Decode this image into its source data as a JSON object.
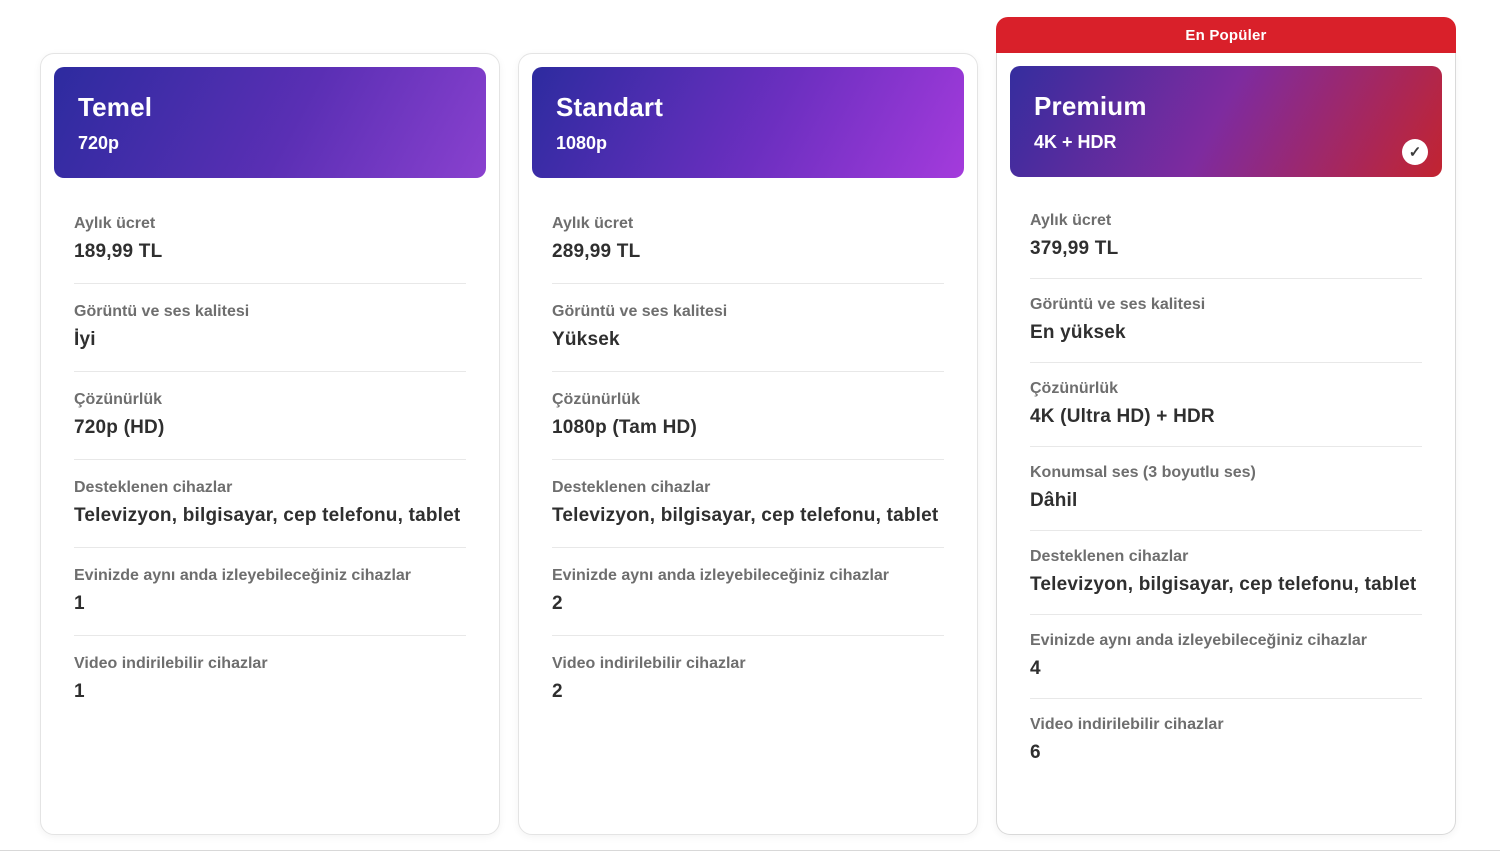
{
  "theme": {
    "badge_color": "#d9202a",
    "check_glyph": "✓",
    "gradients": {
      "temel": "linear-gradient(118deg, #2d2b9f 0%, #5a2fb4 55%, #8a41cf 100%)",
      "standart": "linear-gradient(118deg, #2d2b9f 0%, #6c2fc0 55%, #a43bdc 100%)",
      "premium": "linear-gradient(118deg, #352d9e 0%, #7e2b9f 48%, #c22430 100%)"
    }
  },
  "plans": [
    {
      "id": "temel",
      "title": "Temel",
      "subtitle": "720p",
      "selected": false,
      "features": [
        {
          "label": "Aylık ücret",
          "value": "189,99 TL"
        },
        {
          "label": "Görüntü ve ses kalitesi",
          "value": "İyi"
        },
        {
          "label": "Çözünürlük",
          "value": "720p (HD)"
        },
        {
          "label": "Desteklenen cihazlar",
          "value": "Televizyon, bilgisayar, cep telefonu, tablet"
        },
        {
          "label": "Evinizde aynı anda izleyebileceğiniz cihazlar",
          "value": "1"
        },
        {
          "label": "Video indirilebilir cihazlar",
          "value": "1"
        }
      ]
    },
    {
      "id": "standart",
      "title": "Standart",
      "subtitle": "1080p",
      "selected": false,
      "features": [
        {
          "label": "Aylık ücret",
          "value": "289,99 TL"
        },
        {
          "label": "Görüntü ve ses kalitesi",
          "value": "Yüksek"
        },
        {
          "label": "Çözünürlük",
          "value": "1080p (Tam HD)"
        },
        {
          "label": "Desteklenen cihazlar",
          "value": "Televizyon, bilgisayar, cep telefonu, tablet"
        },
        {
          "label": "Evinizde aynı anda izleyebileceğiniz cihazlar",
          "value": "2"
        },
        {
          "label": "Video indirilebilir cihazlar",
          "value": "2"
        }
      ]
    },
    {
      "id": "premium",
      "title": "Premium",
      "subtitle": "4K + HDR",
      "selected": true,
      "badge": "En Popüler",
      "features": [
        {
          "label": "Aylık ücret",
          "value": "379,99 TL"
        },
        {
          "label": "Görüntü ve ses kalitesi",
          "value": "En yüksek"
        },
        {
          "label": "Çözünürlük",
          "value": "4K (Ultra HD) + HDR"
        },
        {
          "label": "Konumsal ses (3 boyutlu ses)",
          "value": "Dâhil"
        },
        {
          "label": "Desteklenen cihazlar",
          "value": "Televizyon, bilgisayar, cep telefonu, tablet"
        },
        {
          "label": "Evinizde aynı anda izleyebileceğiniz cihazlar",
          "value": "4"
        },
        {
          "label": "Video indirilebilir cihazlar",
          "value": "6"
        }
      ]
    }
  ]
}
